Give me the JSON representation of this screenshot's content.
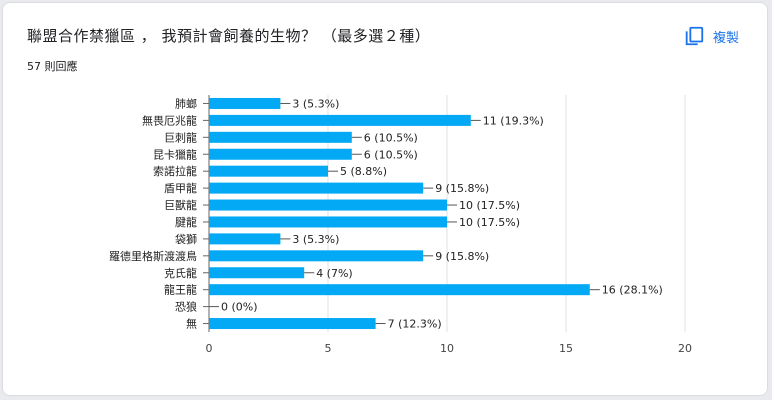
{
  "header": {
    "title": "聯盟合作禁獵區 ， 我預計會飼養的生物？ （最多選２種）",
    "responses": "57 則回應",
    "copy_label": "複製",
    "copy_icon": "copy-icon"
  },
  "colors": {
    "bar": "#03a9f4",
    "accent": "#1a73e8",
    "grid": "#e0e0e0"
  },
  "chart_data": {
    "type": "bar",
    "orientation": "horizontal",
    "title": "聯盟合作禁獵區 ， 我預計會飼養的生物？ （最多選２種）",
    "categories": [
      "肺螂",
      "無畏厄兆龍",
      "巨刺龍",
      "昆卡獵龍",
      "索諾拉龍",
      "盾甲龍",
      "巨獸龍",
      "腱龍",
      "袋獅",
      "羅德里格斯渡渡鳥",
      "克氏龍",
      "龍王龍",
      "恐狼",
      "無"
    ],
    "values": [
      3,
      11,
      6,
      6,
      5,
      9,
      10,
      10,
      3,
      9,
      4,
      16,
      0,
      7
    ],
    "labels": [
      "3 (5.3%)",
      "11 (19.3%)",
      "6 (10.5%)",
      "6 (10.5%)",
      "5 (8.8%)",
      "9 (15.8%)",
      "10 (17.5%)",
      "10 (17.5%)",
      "3 (5.3%)",
      "9 (15.8%)",
      "4 (7%)",
      "16 (28.1%)",
      "0 (0%)",
      "7 (12.3%)"
    ],
    "xlim": [
      0,
      20
    ],
    "xticks": [
      "0",
      "5",
      "10",
      "15",
      "20"
    ],
    "grid": true
  }
}
